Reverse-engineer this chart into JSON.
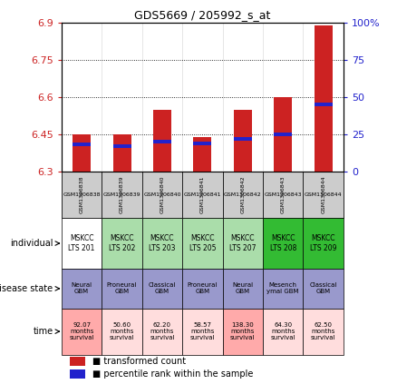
{
  "title": "GDS5669 / 205992_s_at",
  "samples": [
    "GSM1306838",
    "GSM1306839",
    "GSM1306840",
    "GSM1306841",
    "GSM1306842",
    "GSM1306843",
    "GSM1306844"
  ],
  "transformed_count": [
    6.45,
    6.45,
    6.55,
    6.44,
    6.55,
    6.6,
    6.89
  ],
  "percentile_rank": [
    18,
    17,
    20,
    19,
    22,
    25,
    45
  ],
  "bar_bottom": 6.3,
  "ylim_left": [
    6.3,
    6.9
  ],
  "ylim_right": [
    0,
    100
  ],
  "yticks_left": [
    6.3,
    6.45,
    6.6,
    6.75,
    6.9
  ],
  "yticks_right": [
    0,
    25,
    50,
    75,
    100
  ],
  "individual_labels": [
    "MSKCC\nLTS 201",
    "MSKCC\nLTS 202",
    "MSKCC\nLTS 203",
    "MSKCC\nLTS 205",
    "MSKCC\nLTS 207",
    "MSKCC\nLTS 208",
    "MSKCC\nLTS 209"
  ],
  "individual_colors": [
    "#ffffff",
    "#aaddaa",
    "#aaddaa",
    "#aaddaa",
    "#aaddaa",
    "#33bb33",
    "#33bb33"
  ],
  "disease_state_labels": [
    "Neural\nGBM",
    "Proneural\nGBM",
    "Classical\nGBM",
    "Proneural\nGBM",
    "Neural\nGBM",
    "Mesench\nymal GBM",
    "Classical\nGBM"
  ],
  "disease_state_colors": [
    "#9999cc",
    "#9999cc",
    "#9999cc",
    "#9999cc",
    "#9999cc",
    "#9999cc",
    "#9999cc"
  ],
  "time_labels": [
    "92.07\nmonths\nsurvival",
    "50.60\nmonths\nsurvival",
    "62.20\nmonths\nsurvival",
    "58.57\nmonths\nsurvival",
    "138.30\nmonths\nsurvival",
    "64.30\nmonths\nsurvival",
    "62.50\nmonths\nsurvival"
  ],
  "time_highlight": [
    true,
    false,
    false,
    false,
    true,
    false,
    false
  ],
  "time_color_hi": "#ffaaaa",
  "time_color_lo": "#ffdddd",
  "bar_color": "#cc2222",
  "percentile_color": "#2222cc",
  "tick_color_left": "#cc2222",
  "tick_color_right": "#2222cc",
  "legend1": "transformed count",
  "legend2": "percentile rank within the sample",
  "gsm_row_color": "#cccccc"
}
